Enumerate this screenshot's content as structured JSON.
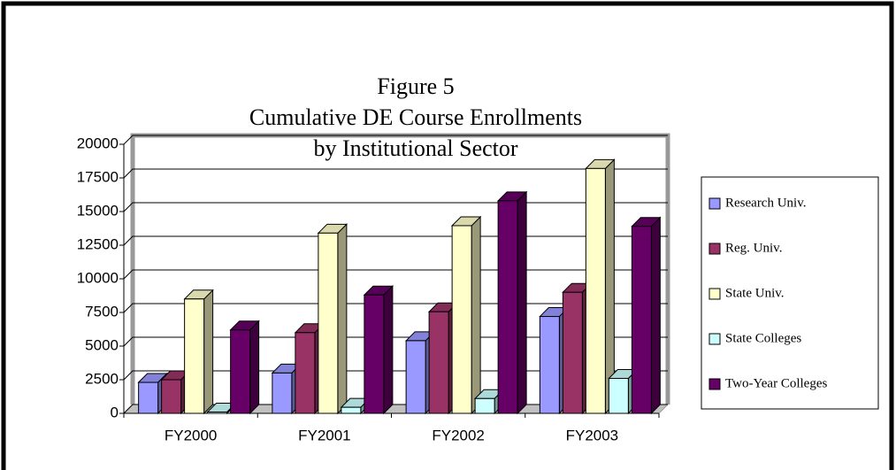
{
  "chart_data": {
    "type": "bar3d",
    "title": [
      "Figure 5",
      "Cumulative DE Course Enrollments",
      "by Institutional Sector"
    ],
    "categories": [
      "FY2000",
      "FY2001",
      "FY2002",
      "FY2003"
    ],
    "series": [
      {
        "name": "Research Univ.",
        "color": "#9999ff",
        "values": [
          2300,
          3000,
          5400,
          7200
        ]
      },
      {
        "name": "Reg. Univ.",
        "color": "#993366",
        "values": [
          2500,
          6000,
          7550,
          9000
        ]
      },
      {
        "name": "State Univ.",
        "color": "#ffffcc",
        "values": [
          8500,
          13400,
          13950,
          18200
        ]
      },
      {
        "name": "State Colleges",
        "color": "#ccffff",
        "values": [
          100,
          450,
          1100,
          2600
        ]
      },
      {
        "name": "Two-Year Colleges",
        "color": "#660066",
        "values": [
          6200,
          8800,
          15800,
          13900
        ]
      }
    ],
    "ylim": [
      0,
      20000
    ],
    "yticks": [
      0,
      2500,
      5000,
      7500,
      10000,
      12500,
      15000,
      17500,
      20000
    ],
    "grid": true,
    "legend": "right"
  }
}
